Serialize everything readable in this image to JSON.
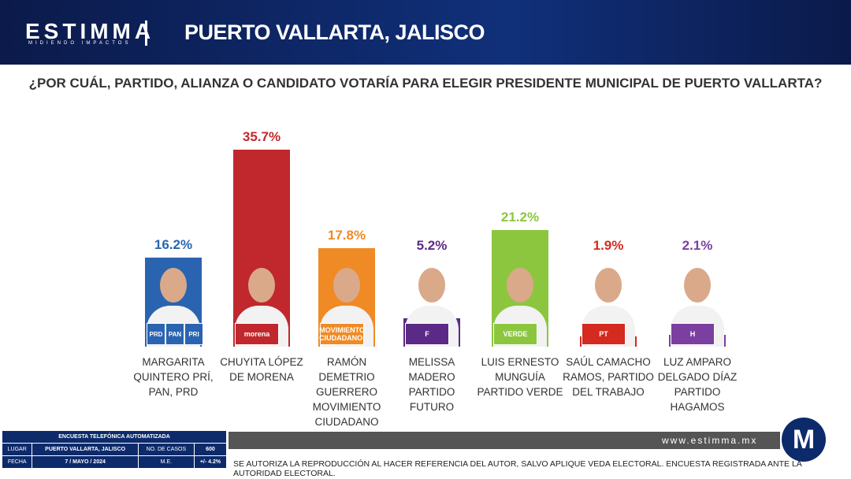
{
  "header": {
    "brand": "ESTIMMA",
    "tagline": "MIDIENDO IMPACTOS",
    "location": "PUERTO VALLARTA, JALISCO"
  },
  "chart_data": {
    "type": "bar",
    "title": "¿POR CUÁL, PARTIDO, ALIANZA O CANDIDATO VOTARÍA PARA ELEGIR PRESIDENTE MUNICIPAL DE PUERTO VALLARTA?",
    "categories": [
      "MARGARITA QUINTERO PRÍ, PAN, PRD",
      "CHUYITA LÓPEZ DE MORENA",
      "RAMÓN DEMETRIO GUERRERO MOVIMIENTO CIUDADANO",
      "MELISSA MADERO PARTIDO FUTURO",
      "LUIS ERNESTO MUNGUÍA PARTIDO VERDE",
      "SAÚL CAMACHO RAMOS, PARTIDO DEL TRABAJO",
      "LUZ AMPARO DELGADO DÍAZ PARTIDO HAGAMOS"
    ],
    "values": [
      16.2,
      35.7,
      17.8,
      5.2,
      21.2,
      1.9,
      2.1
    ],
    "value_labels": [
      "16.2%",
      "35.7%",
      "17.8%",
      "5.2%",
      "21.2%",
      "1.9%",
      "2.1%"
    ],
    "colors": [
      "#2a64b0",
      "#c0282d",
      "#f08a24",
      "#5b2a86",
      "#8cc63f",
      "#d42a1f",
      "#7b3fa0"
    ],
    "logos": [
      [
        "PRD",
        "PAN",
        "PRI"
      ],
      [
        "morena"
      ],
      [
        "MOVIMIENTO CIUDADANO"
      ],
      [
        "F"
      ],
      [
        "VERDE"
      ],
      [
        "PT"
      ],
      [
        "H"
      ]
    ]
  },
  "survey": {
    "title": "ENCUESTA TELEFÓNICA AUTOMATIZADA",
    "rows": [
      [
        "LUGAR",
        "PUERTO VALLARTA, JALISCO",
        "NO. DE CASOS",
        "600"
      ],
      [
        "FECHA",
        "7 / MAYO / 2024",
        "M.E.",
        "+/- 4.2%"
      ]
    ]
  },
  "footer": {
    "website": "www.estimma.mx",
    "disclaimer": "SE AUTORIZA LA REPRODUCCIÓN AL HACER REFERENCIA DEL AUTOR,  SALVO APLIQUE VEDA ELECTORAL. ENCUESTA REGISTRADA ANTE LA AUTORIDAD ELECTORAL.",
    "logo": "M"
  }
}
